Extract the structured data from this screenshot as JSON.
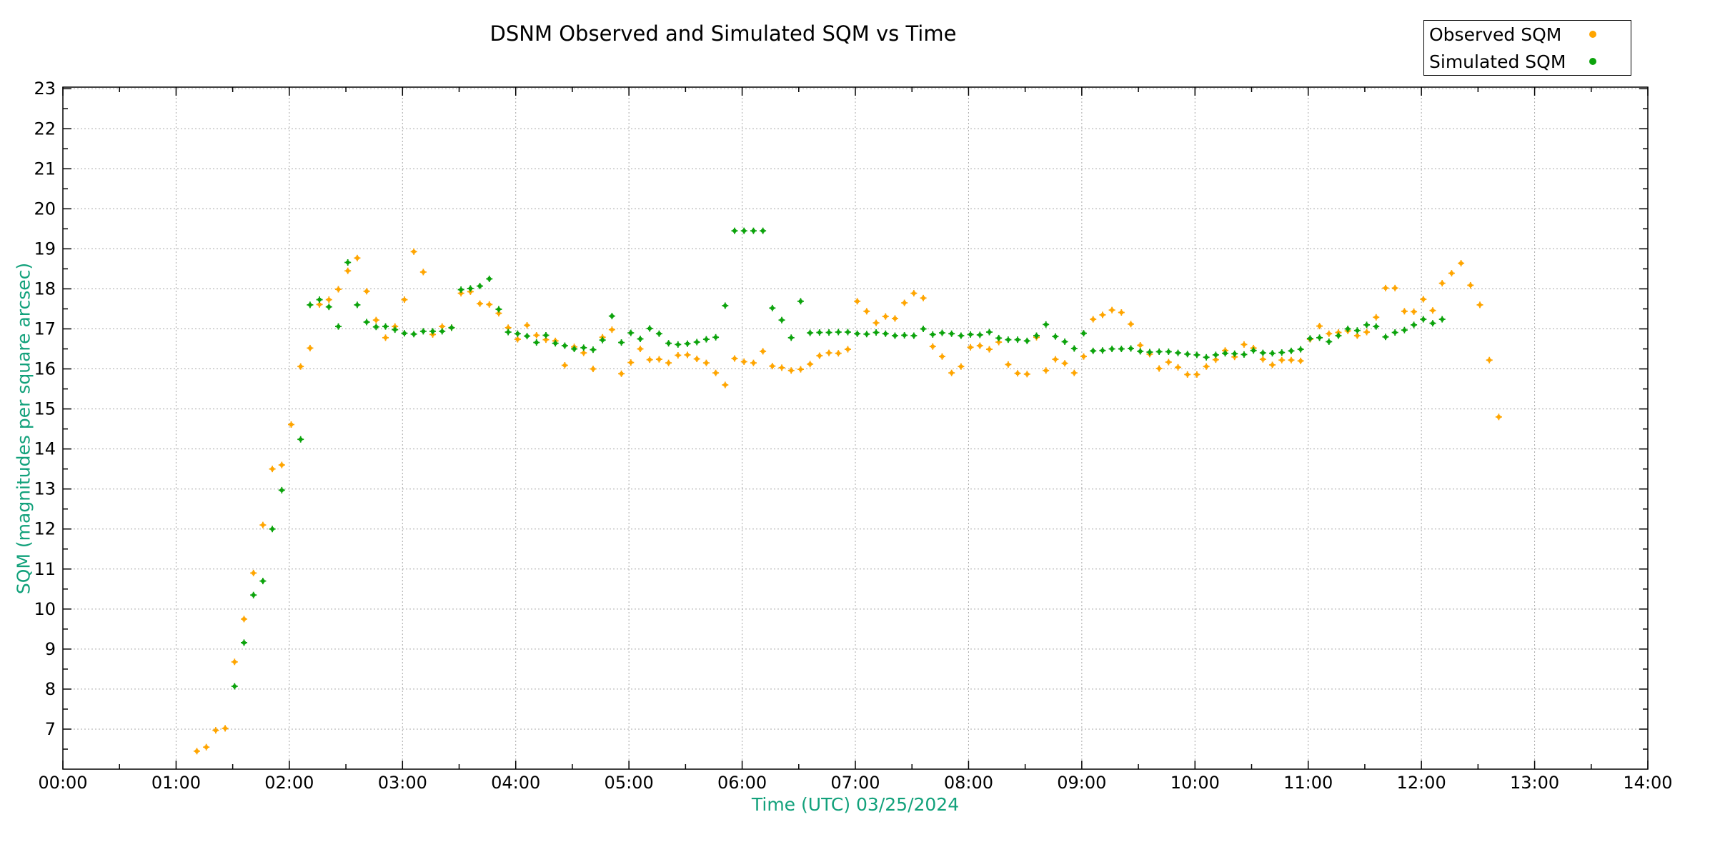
{
  "title": "DSNM Observed and Simulated SQM vs Time",
  "legend": {
    "position": "top-right",
    "items": [
      {
        "label": "Observed SQM",
        "color": "#FFA500"
      },
      {
        "label": "Simulated SQM",
        "color": "#0CA30C"
      }
    ]
  },
  "chart_data": {
    "type": "scatter",
    "title": "DSNM Observed and Simulated SQM vs Time",
    "xlabel": "Time (UTC)   03/25/2024",
    "ylabel": "SQM (magnitudes per square arcsec)",
    "axis_title_color": "#12a17b",
    "tick_label_color": "#000000",
    "grid": true,
    "grid_color": "#a8a8a8",
    "legend_position": "top-right-outside",
    "x_ticks": [
      "00:00",
      "01:00",
      "02:00",
      "03:00",
      "04:00",
      "05:00",
      "06:00",
      "07:00",
      "08:00",
      "09:00",
      "10:00",
      "11:00",
      "12:00",
      "13:00",
      "14:00"
    ],
    "xlim_hours": [
      0,
      14
    ],
    "y_ticks": [
      7,
      8,
      9,
      10,
      11,
      12,
      13,
      14,
      15,
      16,
      17,
      18,
      19,
      20,
      21,
      22,
      23
    ],
    "ylim": [
      6.0,
      23.04
    ],
    "series": [
      {
        "name": "Observed SQM",
        "color": "#FFA500",
        "points": [
          [
            "01:11",
            6.45
          ],
          [
            "01:16",
            6.55
          ],
          [
            "01:21",
            6.97
          ],
          [
            "01:26",
            7.02
          ],
          [
            "01:31",
            8.68
          ],
          [
            "01:36",
            9.75
          ],
          [
            "01:41",
            10.9
          ],
          [
            "01:46",
            12.1
          ],
          [
            "01:51",
            13.5
          ],
          [
            "01:56",
            13.6
          ],
          [
            "02:01",
            14.61
          ],
          [
            "02:06",
            16.06
          ],
          [
            "02:11",
            16.52
          ],
          [
            "02:16",
            17.61
          ],
          [
            "02:21",
            17.73
          ],
          [
            "02:26",
            17.99
          ],
          [
            "02:31",
            18.45
          ],
          [
            "02:36",
            18.77
          ],
          [
            "02:41",
            17.94
          ],
          [
            "02:46",
            17.22
          ],
          [
            "02:51",
            16.78
          ],
          [
            "02:56",
            17.06
          ],
          [
            "03:01",
            17.73
          ],
          [
            "03:06",
            18.93
          ],
          [
            "03:11",
            18.42
          ],
          [
            "03:16",
            16.86
          ],
          [
            "03:21",
            17.06
          ],
          [
            "03:26",
            17.03
          ],
          [
            "03:31",
            17.89
          ],
          [
            "03:36",
            17.93
          ],
          [
            "03:41",
            17.63
          ],
          [
            "03:46",
            17.61
          ],
          [
            "03:51",
            17.39
          ],
          [
            "03:56",
            17.03
          ],
          [
            "04:01",
            16.74
          ],
          [
            "04:06",
            17.09
          ],
          [
            "04:11",
            16.84
          ],
          [
            "04:16",
            16.73
          ],
          [
            "04:21",
            16.7
          ],
          [
            "04:26",
            16.09
          ],
          [
            "04:31",
            16.55
          ],
          [
            "04:36",
            16.4
          ],
          [
            "04:41",
            16.0
          ],
          [
            "04:46",
            16.79
          ],
          [
            "04:51",
            16.98
          ],
          [
            "04:56",
            15.88
          ],
          [
            "05:01",
            16.16
          ],
          [
            "05:06",
            16.5
          ],
          [
            "05:11",
            16.23
          ],
          [
            "05:16",
            16.24
          ],
          [
            "05:21",
            16.15
          ],
          [
            "05:26",
            16.34
          ],
          [
            "05:31",
            16.35
          ],
          [
            "05:36",
            16.25
          ],
          [
            "05:41",
            16.15
          ],
          [
            "05:46",
            15.9
          ],
          [
            "05:51",
            15.6
          ],
          [
            "05:56",
            16.26
          ],
          [
            "06:01",
            16.18
          ],
          [
            "06:06",
            16.15
          ],
          [
            "06:11",
            16.44
          ],
          [
            "06:16",
            16.07
          ],
          [
            "06:21",
            16.03
          ],
          [
            "06:26",
            15.96
          ],
          [
            "06:31",
            15.99
          ],
          [
            "06:36",
            16.12
          ],
          [
            "06:41",
            16.33
          ],
          [
            "06:46",
            16.4
          ],
          [
            "06:51",
            16.39
          ],
          [
            "06:56",
            16.49
          ],
          [
            "07:01",
            17.69
          ],
          [
            "07:06",
            17.44
          ],
          [
            "07:11",
            17.15
          ],
          [
            "07:16",
            17.31
          ],
          [
            "07:21",
            17.26
          ],
          [
            "07:26",
            17.65
          ],
          [
            "07:31",
            17.89
          ],
          [
            "07:36",
            17.77
          ],
          [
            "07:41",
            16.56
          ],
          [
            "07:46",
            16.31
          ],
          [
            "07:51",
            15.9
          ],
          [
            "07:56",
            16.06
          ],
          [
            "08:01",
            16.54
          ],
          [
            "08:06",
            16.58
          ],
          [
            "08:11",
            16.49
          ],
          [
            "08:16",
            16.67
          ],
          [
            "08:21",
            16.11
          ],
          [
            "08:26",
            15.89
          ],
          [
            "08:31",
            15.87
          ],
          [
            "08:36",
            16.79
          ],
          [
            "08:41",
            15.96
          ],
          [
            "08:46",
            16.24
          ],
          [
            "08:51",
            16.14
          ],
          [
            "08:56",
            15.9
          ],
          [
            "09:01",
            16.31
          ],
          [
            "09:06",
            17.24
          ],
          [
            "09:11",
            17.35
          ],
          [
            "09:16",
            17.47
          ],
          [
            "09:21",
            17.41
          ],
          [
            "09:26",
            17.12
          ],
          [
            "09:31",
            16.59
          ],
          [
            "09:36",
            16.37
          ],
          [
            "09:41",
            16.01
          ],
          [
            "09:46",
            16.17
          ],
          [
            "09:51",
            16.04
          ],
          [
            "09:56",
            15.86
          ],
          [
            "10:01",
            15.86
          ],
          [
            "10:06",
            16.06
          ],
          [
            "10:11",
            16.23
          ],
          [
            "10:16",
            16.46
          ],
          [
            "10:21",
            16.3
          ],
          [
            "10:26",
            16.61
          ],
          [
            "10:31",
            16.52
          ],
          [
            "10:36",
            16.24
          ],
          [
            "10:41",
            16.1
          ],
          [
            "10:46",
            16.22
          ],
          [
            "10:51",
            16.22
          ],
          [
            "10:56",
            16.2
          ],
          [
            "11:01",
            16.74
          ],
          [
            "11:06",
            17.07
          ],
          [
            "11:11",
            16.88
          ],
          [
            "11:16",
            16.91
          ],
          [
            "11:21",
            16.95
          ],
          [
            "11:26",
            16.83
          ],
          [
            "11:31",
            16.92
          ],
          [
            "11:36",
            17.29
          ],
          [
            "11:41",
            18.02
          ],
          [
            "11:46",
            18.02
          ],
          [
            "11:51",
            17.44
          ],
          [
            "11:56",
            17.43
          ],
          [
            "12:01",
            17.74
          ],
          [
            "12:06",
            17.46
          ],
          [
            "12:11",
            18.14
          ],
          [
            "12:16",
            18.39
          ],
          [
            "12:21",
            18.64
          ],
          [
            "12:26",
            18.09
          ],
          [
            "12:31",
            17.6
          ],
          [
            "12:36",
            16.22
          ],
          [
            "12:41",
            14.8
          ]
        ]
      },
      {
        "name": "Simulated SQM",
        "color": "#0CA30C",
        "points": [
          [
            "01:31",
            8.07
          ],
          [
            "01:36",
            9.16
          ],
          [
            "01:41",
            10.35
          ],
          [
            "01:46",
            10.7
          ],
          [
            "01:51",
            12.0
          ],
          [
            "01:56",
            12.97
          ],
          [
            "02:06",
            14.24
          ],
          [
            "02:11",
            17.6
          ],
          [
            "02:16",
            17.73
          ],
          [
            "02:21",
            17.55
          ],
          [
            "02:26",
            17.06
          ],
          [
            "02:31",
            18.66
          ],
          [
            "02:36",
            17.6
          ],
          [
            "02:41",
            17.17
          ],
          [
            "02:46",
            17.05
          ],
          [
            "02:51",
            17.06
          ],
          [
            "02:56",
            16.98
          ],
          [
            "03:01",
            16.89
          ],
          [
            "03:06",
            16.87
          ],
          [
            "03:11",
            16.94
          ],
          [
            "03:16",
            16.94
          ],
          [
            "03:21",
            16.94
          ],
          [
            "03:26",
            17.03
          ],
          [
            "03:31",
            17.98
          ],
          [
            "03:36",
            18.01
          ],
          [
            "03:41",
            18.07
          ],
          [
            "03:46",
            18.25
          ],
          [
            "03:51",
            17.49
          ],
          [
            "03:56",
            16.92
          ],
          [
            "04:01",
            16.88
          ],
          [
            "04:06",
            16.82
          ],
          [
            "04:11",
            16.66
          ],
          [
            "04:16",
            16.84
          ],
          [
            "04:21",
            16.64
          ],
          [
            "04:26",
            16.58
          ],
          [
            "04:31",
            16.5
          ],
          [
            "04:36",
            16.53
          ],
          [
            "04:41",
            16.48
          ],
          [
            "04:46",
            16.72
          ],
          [
            "04:51",
            17.32
          ],
          [
            "04:56",
            16.66
          ],
          [
            "05:01",
            16.9
          ],
          [
            "05:06",
            16.75
          ],
          [
            "05:11",
            17.01
          ],
          [
            "05:16",
            16.88
          ],
          [
            "05:21",
            16.64
          ],
          [
            "05:26",
            16.61
          ],
          [
            "05:31",
            16.63
          ],
          [
            "05:36",
            16.67
          ],
          [
            "05:41",
            16.74
          ],
          [
            "05:46",
            16.79
          ],
          [
            "05:51",
            17.58
          ],
          [
            "05:56",
            19.45
          ],
          [
            "06:01",
            19.45
          ],
          [
            "06:06",
            19.45
          ],
          [
            "06:11",
            19.45
          ],
          [
            "06:16",
            17.52
          ],
          [
            "06:21",
            17.22
          ],
          [
            "06:26",
            16.78
          ],
          [
            "06:31",
            17.69
          ],
          [
            "06:36",
            16.9
          ],
          [
            "06:41",
            16.91
          ],
          [
            "06:46",
            16.91
          ],
          [
            "06:51",
            16.92
          ],
          [
            "06:56",
            16.92
          ],
          [
            "07:01",
            16.88
          ],
          [
            "07:06",
            16.87
          ],
          [
            "07:11",
            16.91
          ],
          [
            "07:16",
            16.88
          ],
          [
            "07:21",
            16.83
          ],
          [
            "07:26",
            16.84
          ],
          [
            "07:31",
            16.83
          ],
          [
            "07:36",
            17.0
          ],
          [
            "07:41",
            16.86
          ],
          [
            "07:46",
            16.9
          ],
          [
            "07:51",
            16.88
          ],
          [
            "07:56",
            16.83
          ],
          [
            "08:01",
            16.86
          ],
          [
            "08:06",
            16.85
          ],
          [
            "08:11",
            16.92
          ],
          [
            "08:16",
            16.77
          ],
          [
            "08:21",
            16.73
          ],
          [
            "08:26",
            16.73
          ],
          [
            "08:31",
            16.7
          ],
          [
            "08:36",
            16.83
          ],
          [
            "08:41",
            17.11
          ],
          [
            "08:46",
            16.81
          ],
          [
            "08:51",
            16.68
          ],
          [
            "08:56",
            16.51
          ],
          [
            "09:01",
            16.89
          ],
          [
            "09:06",
            16.45
          ],
          [
            "09:11",
            16.46
          ],
          [
            "09:16",
            16.5
          ],
          [
            "09:21",
            16.5
          ],
          [
            "09:26",
            16.51
          ],
          [
            "09:31",
            16.44
          ],
          [
            "09:36",
            16.42
          ],
          [
            "09:41",
            16.43
          ],
          [
            "09:46",
            16.43
          ],
          [
            "09:51",
            16.4
          ],
          [
            "09:56",
            16.37
          ],
          [
            "10:01",
            16.35
          ],
          [
            "10:06",
            16.29
          ],
          [
            "10:11",
            16.35
          ],
          [
            "10:16",
            16.39
          ],
          [
            "10:21",
            16.38
          ],
          [
            "10:26",
            16.36
          ],
          [
            "10:31",
            16.46
          ],
          [
            "10:36",
            16.4
          ],
          [
            "10:41",
            16.39
          ],
          [
            "10:46",
            16.41
          ],
          [
            "10:51",
            16.45
          ],
          [
            "10:56",
            16.49
          ],
          [
            "11:01",
            16.76
          ],
          [
            "11:06",
            16.78
          ],
          [
            "11:11",
            16.68
          ],
          [
            "11:16",
            16.83
          ],
          [
            "11:21",
            17.0
          ],
          [
            "11:26",
            16.96
          ],
          [
            "11:31",
            17.1
          ],
          [
            "11:36",
            17.06
          ],
          [
            "11:41",
            16.8
          ],
          [
            "11:46",
            16.91
          ],
          [
            "11:51",
            16.97
          ],
          [
            "11:56",
            17.1
          ],
          [
            "12:01",
            17.24
          ],
          [
            "12:06",
            17.14
          ],
          [
            "12:11",
            17.24
          ]
        ]
      }
    ]
  }
}
